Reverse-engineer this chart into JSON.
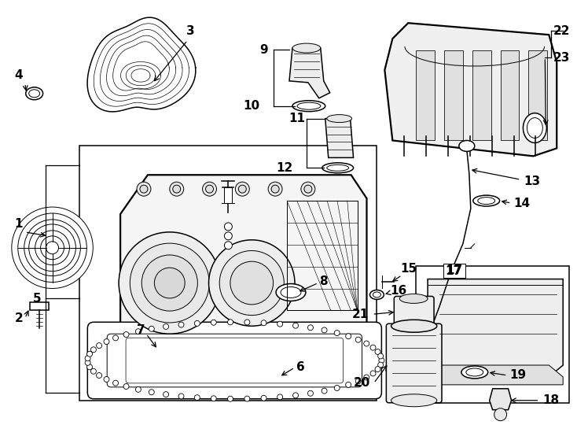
{
  "background_color": "#ffffff",
  "line_color": "#000000",
  "fig_width": 7.34,
  "fig_height": 5.4,
  "dpi": 100
}
